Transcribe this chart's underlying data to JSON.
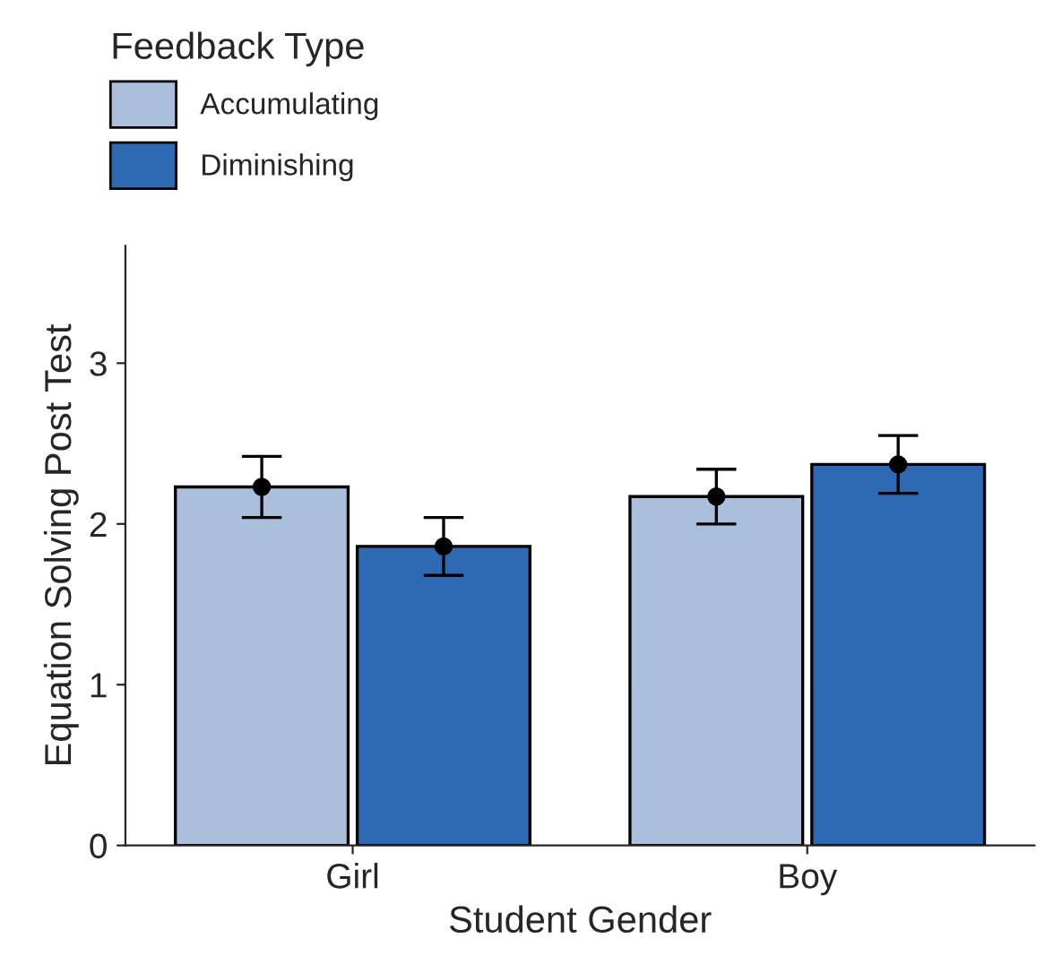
{
  "chart_data": {
    "type": "bar",
    "xlabel": "Student Gender",
    "ylabel": "Equation Solving Post Test",
    "legend_title": "Feedback Type",
    "legend": "top left",
    "categories": [
      "Girl",
      "Boy"
    ],
    "series": [
      {
        "name": "Accumulating",
        "color": "#aabfdc",
        "values": [
          2.23,
          2.17
        ],
        "errors": [
          0.19,
          0.17
        ]
      },
      {
        "name": "Diminishing",
        "color": "#2e69b3",
        "values": [
          1.86,
          2.37
        ],
        "errors": [
          0.18,
          0.18
        ]
      },
      {
        "type": "scatter",
        "color": "#000000",
        "x": [
          "Girl",
          "Boy"
        ],
        "values": [
          2.23,
          2.17
        ]
      },
      {
        "type": "scatter",
        "color": "#000000",
        "x": [
          "Girl",
          "Boy"
        ],
        "values": [
          1.86,
          2.37
        ]
      }
    ],
    "marker": "circle",
    "ylim": [
      0,
      3.73
    ],
    "yticks": [
      0,
      1,
      2,
      3
    ],
    "grid": false
  }
}
